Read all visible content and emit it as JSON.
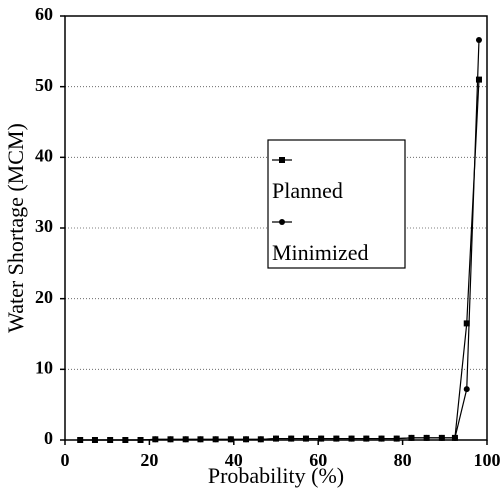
{
  "chart_data": {
    "type": "line",
    "xlabel": "Probability (%)",
    "ylabel": "Water Shortage (MCM)",
    "x": [
      3.6,
      7.1,
      10.7,
      14.3,
      17.9,
      21.4,
      25,
      28.6,
      32.1,
      35.7,
      39.3,
      42.9,
      46.4,
      50,
      53.6,
      57.1,
      60.7,
      64.3,
      67.9,
      71.4,
      75,
      78.6,
      82.1,
      85.7,
      89.3,
      92.4,
      95.2,
      98.1
    ],
    "series": [
      {
        "name": "Planned",
        "color": "#000000",
        "marker": "square",
        "values": [
          0,
          0,
          0,
          0,
          0,
          0.1,
          0.1,
          0.1,
          0.1,
          0.1,
          0.1,
          0.1,
          0.1,
          0.2,
          0.2,
          0.2,
          0.2,
          0.2,
          0.2,
          0.2,
          0.2,
          0.2,
          0.3,
          0.3,
          0.3,
          0.3,
          16.5,
          51
        ]
      },
      {
        "name": "Minimized",
        "color": "#000000",
        "marker": "circle",
        "values": [
          0,
          0,
          0,
          0,
          0,
          0.1,
          0.1,
          0.1,
          0.1,
          0.1,
          0.1,
          0.1,
          0.1,
          0.2,
          0.2,
          0.2,
          0.2,
          0.2,
          0.2,
          0.2,
          0.2,
          0.2,
          0.3,
          0.3,
          0.3,
          0.3,
          7.2,
          56.6
        ]
      }
    ],
    "xlim": [
      0,
      100
    ],
    "xticks": [
      0,
      20,
      40,
      60,
      80,
      100
    ],
    "ylim": [
      0,
      60
    ],
    "yticks": [
      0,
      10,
      20,
      30,
      40,
      50,
      60
    ],
    "grid": true
  }
}
